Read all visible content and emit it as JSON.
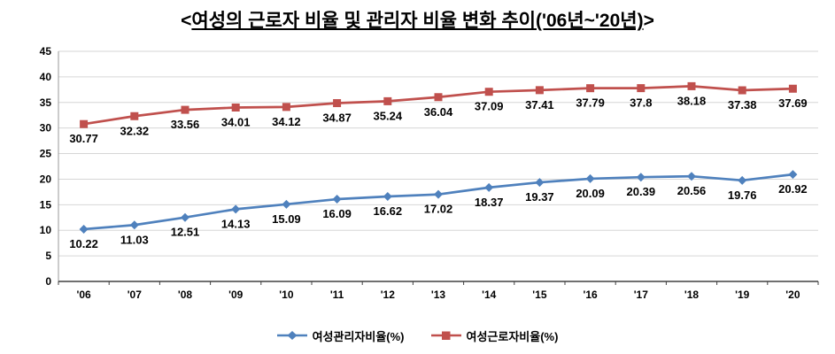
{
  "title": {
    "open": "<",
    "text": "여성의 근로자 비율 및 관리자 비율 변화 추이('06년~'20년)",
    "close": ">"
  },
  "chart_data": {
    "type": "line",
    "categories": [
      "'06",
      "'07",
      "'08",
      "'09",
      "'10",
      "'11",
      "'12",
      "'13",
      "'14",
      "'15",
      "'16",
      "'17",
      "'18",
      "'19",
      "'20"
    ],
    "series": [
      {
        "name": "여성관리자비율(%)",
        "color": "#4F81BD",
        "marker": "diamond",
        "values": [
          10.22,
          11.03,
          12.51,
          14.13,
          15.09,
          16.09,
          16.62,
          17.02,
          18.37,
          19.37,
          20.09,
          20.39,
          20.56,
          19.76,
          20.92
        ]
      },
      {
        "name": "여성근로자비율(%)",
        "color": "#C0504D",
        "marker": "square",
        "values": [
          30.77,
          32.32,
          33.56,
          34.01,
          34.12,
          34.87,
          35.24,
          36.04,
          37.09,
          37.41,
          37.79,
          37.8,
          38.18,
          37.38,
          37.69
        ]
      }
    ],
    "ylim": [
      0,
      45
    ],
    "ytick_step": 5,
    "grid": true,
    "legend_position": "bottom",
    "grid_color": "#d6d6d6",
    "y_axis_color": "#9a9a9a",
    "x_axis_color": "#404040",
    "tick_label_color": "#000000",
    "data_label_color": "#000000"
  }
}
